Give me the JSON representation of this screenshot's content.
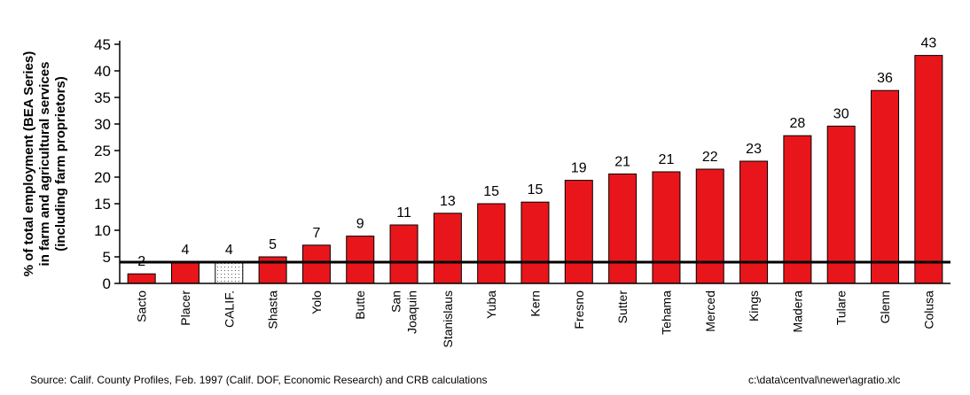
{
  "chart_data": {
    "type": "bar",
    "ylabel_lines": [
      "% of total employment (BEA Series)",
      "in farm and agricultural services",
      "(including farm proprietors)"
    ],
    "categories": [
      "Sacto",
      "Placer",
      "CALIF.",
      "Shasta",
      "Yolo",
      "Butte",
      "San Joaquin",
      "Stanislaus",
      "Yuba",
      "Kern",
      "Fresno",
      "Sutter",
      "Tehama",
      "Merced",
      "Kings",
      "Madera",
      "Tulare",
      "Glenn",
      "Colusa"
    ],
    "values": [
      1.8,
      4,
      4,
      5,
      7.2,
      8.9,
      11,
      13.2,
      15,
      15.3,
      19.4,
      20.6,
      21,
      21.5,
      23,
      27.8,
      29.6,
      36.3,
      42.9
    ],
    "data_labels": [
      "2",
      "4",
      "4",
      "5",
      "7",
      "9",
      "11",
      "13",
      "15",
      "15",
      "19",
      "21",
      "21",
      "22",
      "23",
      "28",
      "30",
      "36",
      "43"
    ],
    "ylim": [
      0,
      45
    ],
    "yticks": [
      0,
      5,
      10,
      15,
      20,
      25,
      30,
      35,
      40,
      45
    ],
    "reference_line_value": 4,
    "highlighted_category": "CALIF.",
    "colors": {
      "bar": "#e8161b",
      "highlight_fill": "#ffffff",
      "outline": "#000000"
    },
    "grid": false
  },
  "footer": {
    "source": "Source: Calif. County Profiles, Feb. 1997 (Calif. DOF, Economic Research) and CRB calculations",
    "filepath": "c:\\data\\centval\\newer\\agratio.xlc"
  }
}
